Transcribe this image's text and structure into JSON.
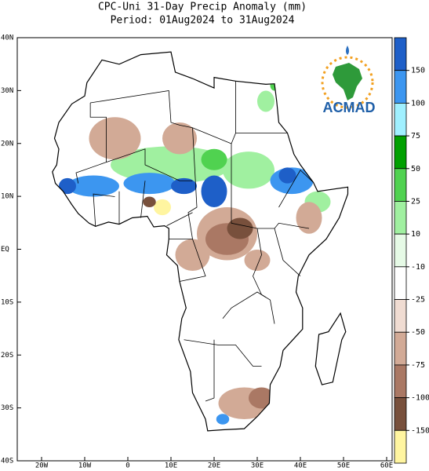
{
  "header": {
    "title": "CPC-Uni 31-Day Precip Anomaly (mm)",
    "period": "Period: 01Aug2024 to 31Aug2024"
  },
  "map": {
    "lat_labels": [
      "40N",
      "30N",
      "20N",
      "10N",
      "EQ",
      "10S",
      "20S",
      "30S",
      "40S"
    ],
    "lon_labels": [
      "20W",
      "10W",
      "0",
      "10E",
      "20E",
      "30E",
      "40E",
      "50E",
      "60E"
    ]
  },
  "colorbar": {
    "labels": [
      "150",
      "100",
      "75",
      "50",
      "25",
      "10",
      "-10",
      "-25",
      "-50",
      "-75",
      "-100",
      "-150"
    ],
    "colors": [
      "#1e5fc8",
      "#3c96f0",
      "#a0f0ff",
      "#00a000",
      "#50d250",
      "#a0f0a0",
      "#e6fae6",
      "#ffffff",
      "#f0dcd2",
      "#d2aa96",
      "#aa7864",
      "#78503c",
      "#fff5a0"
    ]
  },
  "logo": {
    "text": "ACMAD"
  }
}
